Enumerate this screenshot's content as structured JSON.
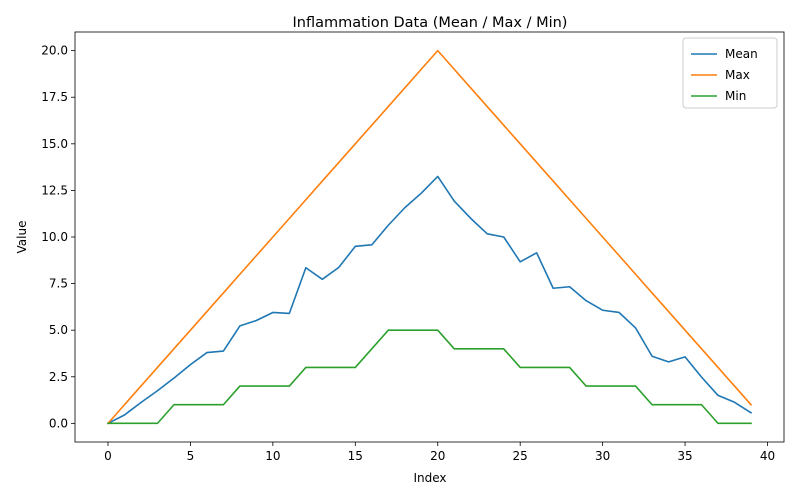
{
  "chart_data": {
    "type": "line",
    "title": "Inflammation Data (Mean / Max / Min)",
    "xlabel": "Index",
    "ylabel": "Value",
    "xlim": [
      -2,
      41
    ],
    "ylim": [
      -1.0,
      21.0
    ],
    "xticks": [
      0,
      5,
      10,
      15,
      20,
      25,
      30,
      35,
      40
    ],
    "xtick_labels": [
      "0",
      "5",
      "10",
      "15",
      "20",
      "25",
      "30",
      "35",
      "40"
    ],
    "yticks": [
      0,
      2.5,
      5,
      7.5,
      10,
      12.5,
      15,
      17.5,
      20
    ],
    "ytick_labels": [
      "0.0",
      "2.5",
      "5.0",
      "7.5",
      "10.0",
      "12.5",
      "15.0",
      "17.5",
      "20.0"
    ],
    "grid": false,
    "legend_position": "top-right",
    "x": [
      0,
      1,
      2,
      3,
      4,
      5,
      6,
      7,
      8,
      9,
      10,
      11,
      12,
      13,
      14,
      15,
      16,
      17,
      18,
      19,
      20,
      21,
      22,
      23,
      24,
      25,
      26,
      27,
      28,
      29,
      30,
      31,
      32,
      33,
      34,
      35,
      36,
      37,
      38,
      39
    ],
    "series": [
      {
        "name": "Mean",
        "color": "#1f77b4",
        "values": [
          0.0,
          0.45,
          1.12,
          1.75,
          2.43,
          3.15,
          3.8,
          3.88,
          5.23,
          5.52,
          5.95,
          5.9,
          8.35,
          7.73,
          8.37,
          9.5,
          9.58,
          10.63,
          11.57,
          12.35,
          13.25,
          11.93,
          11.0,
          10.17,
          10.0,
          8.67,
          9.15,
          7.25,
          7.33,
          6.58,
          6.07,
          5.95,
          5.12,
          3.6,
          3.3,
          3.57,
          2.48,
          1.5,
          1.13,
          0.57
        ]
      },
      {
        "name": "Max",
        "color": "#ff7f0e",
        "values": [
          0,
          1,
          2,
          3,
          4,
          5,
          6,
          7,
          8,
          9,
          10,
          11,
          12,
          13,
          14,
          15,
          16,
          17,
          18,
          19,
          20,
          19,
          18,
          17,
          16,
          15,
          14,
          13,
          12,
          11,
          10,
          9,
          8,
          7,
          6,
          5,
          4,
          3,
          2,
          1
        ]
      },
      {
        "name": "Min",
        "color": "#2ca02c",
        "values": [
          0,
          0,
          0,
          0,
          1,
          1,
          1,
          1,
          2,
          2,
          2,
          2,
          3,
          3,
          3,
          3,
          4,
          5,
          5,
          5,
          5,
          4,
          4,
          4,
          4,
          3,
          3,
          3,
          3,
          2,
          2,
          2,
          2,
          1,
          1,
          1,
          1,
          0,
          0,
          0
        ]
      }
    ]
  }
}
